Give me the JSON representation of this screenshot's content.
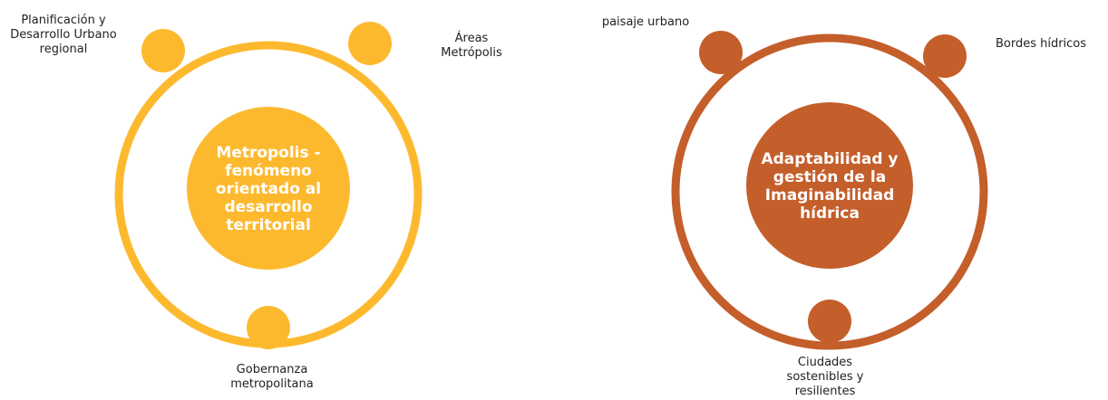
{
  "diagrams": [
    {
      "color": "#FDB92E",
      "center": {
        "lines": [
          "Metropolis -",
          "fenómeno",
          "orientado al",
          "desarrollo",
          "territorial"
        ]
      },
      "nodes": [
        {
          "lines": [
            "Planificación y",
            "Desarrollo Urbano",
            "regional"
          ]
        },
        {
          "lines": [
            "Áreas",
            "Metrópolis"
          ]
        },
        {
          "lines": [
            "Gobernanza",
            "metropolitana"
          ]
        }
      ]
    },
    {
      "color": "#C45E2A",
      "center": {
        "lines": [
          "Adaptabilidad y",
          "gestión de la",
          "Imaginabilidad",
          "hídrica"
        ]
      },
      "nodes": [
        {
          "lines": [
            "paisaje urbano"
          ]
        },
        {
          "lines": [
            "Bordes hídricos"
          ]
        },
        {
          "lines": [
            "Ciudades",
            "sostenibles y",
            "resilientes"
          ]
        }
      ]
    }
  ]
}
